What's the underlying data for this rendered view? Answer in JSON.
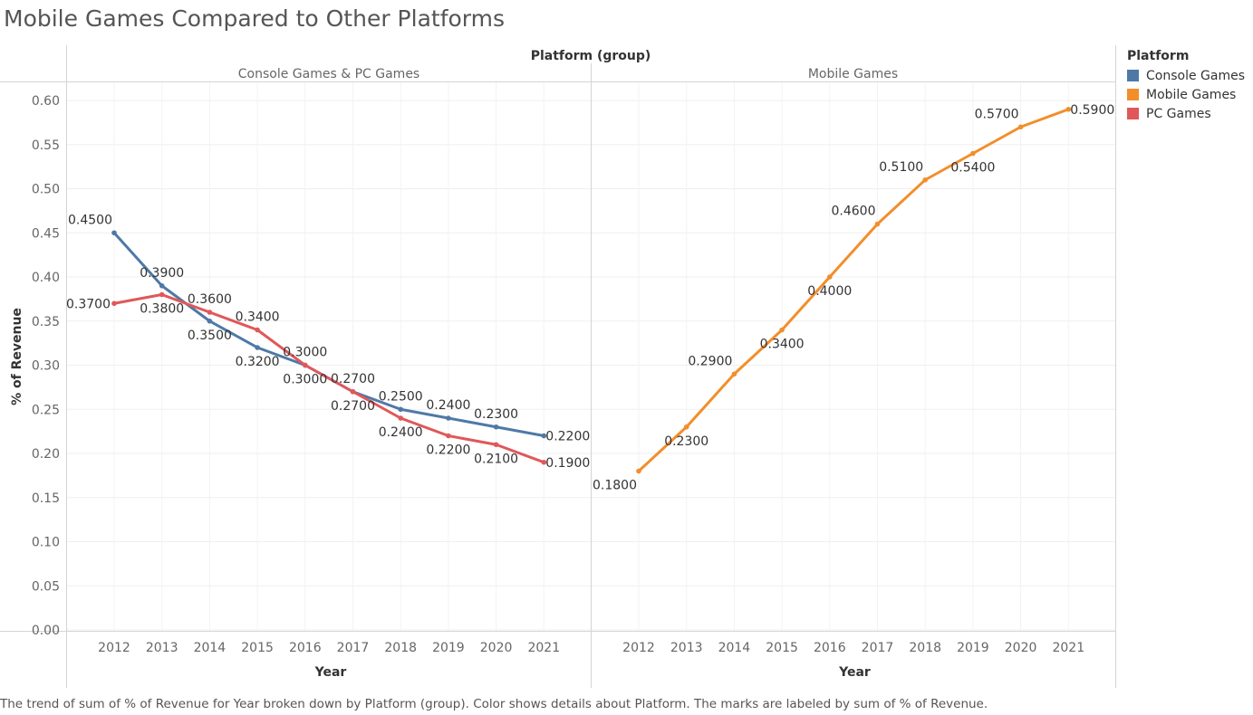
{
  "title": "Mobile Games Compared to Other Platforms",
  "caption": "The trend of sum of % of Revenue for Year broken down by Platform (group).  Color shows details about Platform.  The marks are labeled by sum of % of Revenue.",
  "legend": {
    "title": "Platform",
    "items": [
      {
        "label": "Console Games",
        "color": "#4e79a7"
      },
      {
        "label": "Mobile Games",
        "color": "#f28e2b"
      },
      {
        "label": "PC Games",
        "color": "#e15759"
      }
    ]
  },
  "chart_data": {
    "type": "line",
    "column_header_title": "Platform (group)",
    "ylabel": "% of Revenue",
    "xlabel": "Year",
    "ylim": [
      0,
      0.62
    ],
    "yticks": [
      "0.00",
      "0.05",
      "0.10",
      "0.15",
      "0.20",
      "0.25",
      "0.30",
      "0.35",
      "0.40",
      "0.45",
      "0.50",
      "0.55",
      "0.60"
    ],
    "x": [
      "2012",
      "2013",
      "2014",
      "2015",
      "2016",
      "2017",
      "2018",
      "2019",
      "2020",
      "2021"
    ],
    "grid": true,
    "legend_placement": "right",
    "panels": [
      {
        "name": "Console Games & PC Games",
        "series": [
          {
            "name": "Console Games",
            "color": "#4e79a7",
            "values": [
              0.45,
              0.39,
              0.35,
              0.32,
              0.3,
              0.27,
              0.25,
              0.24,
              0.23,
              0.22
            ],
            "labels": [
              "0.4500",
              "0.3900",
              "0.3500",
              "0.3200",
              "0.3000",
              "0.2700",
              "0.2500",
              "0.2400",
              "0.2300",
              "0.2200"
            ]
          },
          {
            "name": "PC Games",
            "color": "#e15759",
            "values": [
              0.37,
              0.38,
              0.36,
              0.34,
              0.3,
              0.27,
              0.24,
              0.22,
              0.21,
              0.19
            ],
            "labels": [
              "0.3700",
              "0.3800",
              "0.3600",
              "0.3400",
              "0.3000",
              "0.2700",
              "0.2400",
              "0.2200",
              "0.2100",
              "0.1900"
            ]
          }
        ]
      },
      {
        "name": "Mobile Games",
        "series": [
          {
            "name": "Mobile Games",
            "color": "#f28e2b",
            "values": [
              0.18,
              0.23,
              0.29,
              0.34,
              0.4,
              0.46,
              0.51,
              0.54,
              0.57,
              0.59
            ],
            "labels": [
              "0.1800",
              "0.2300",
              "0.2900",
              "0.3400",
              "0.4000",
              "0.4600",
              "0.5100",
              "0.5400",
              "0.5700",
              "0.5900"
            ]
          }
        ]
      }
    ]
  }
}
